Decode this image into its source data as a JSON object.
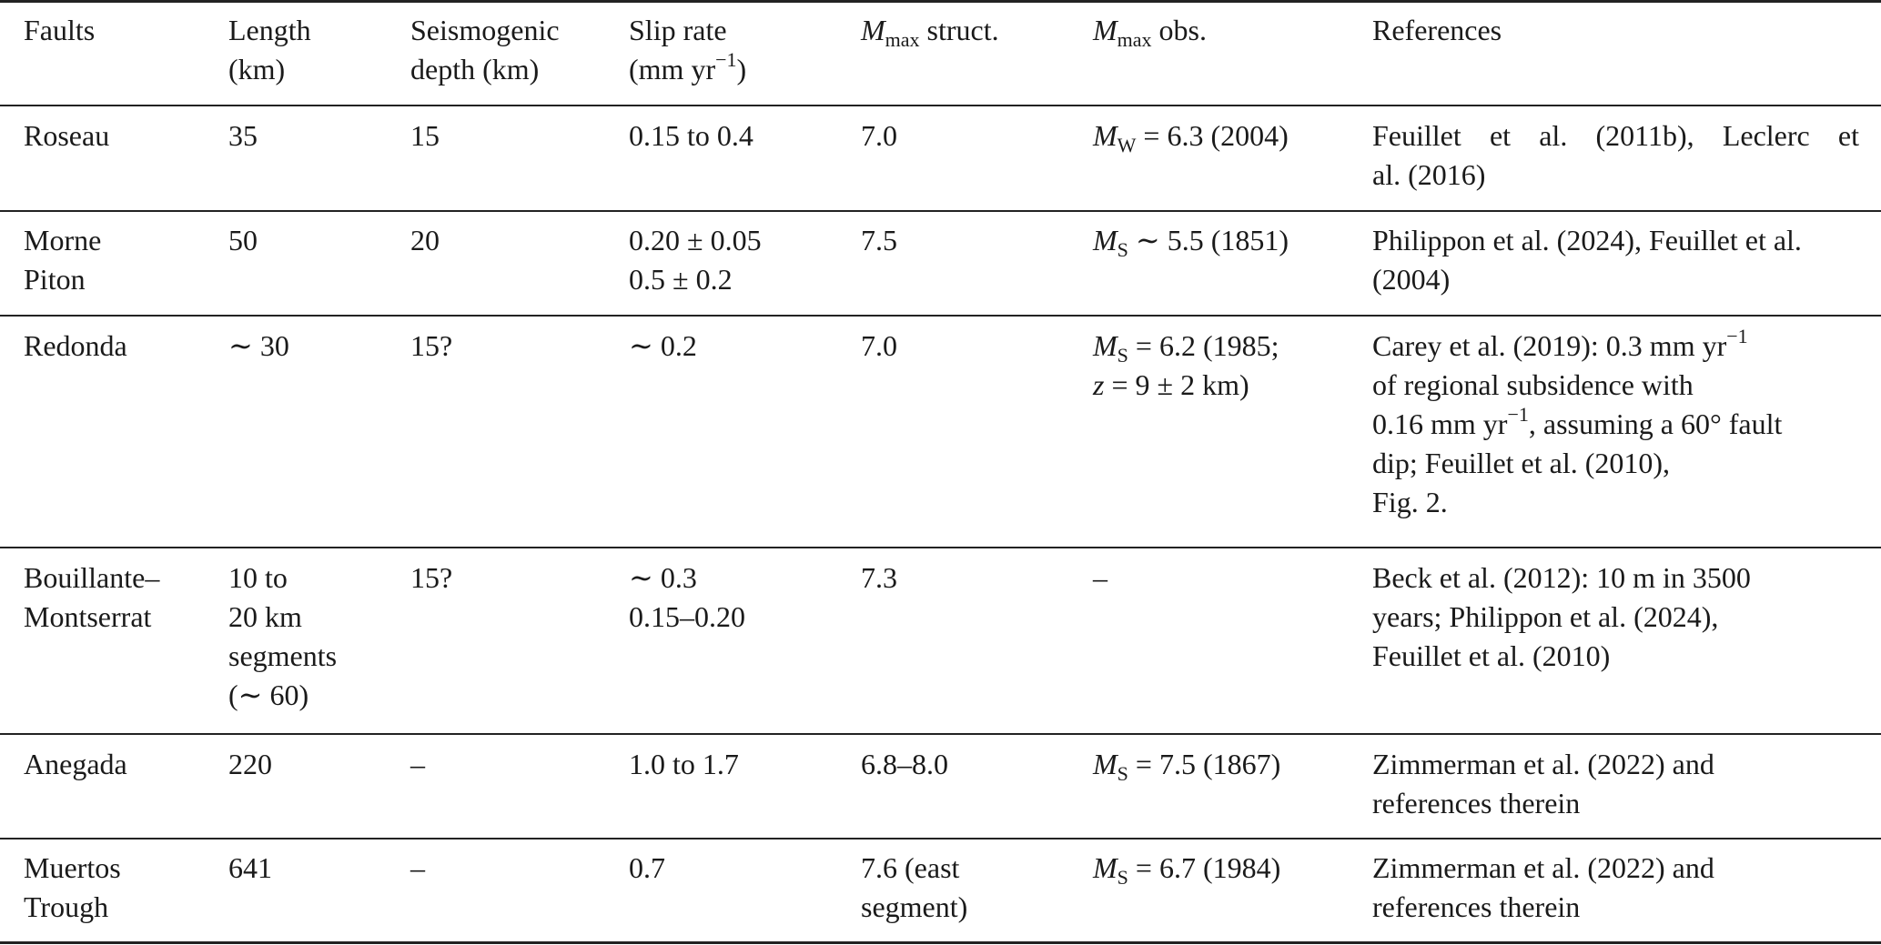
{
  "headers": {
    "faults": "Faults",
    "length": [
      "Length",
      "(km)"
    ],
    "depth": [
      "Seismogenic",
      "depth (km)"
    ],
    "slip_rate": [
      "Slip rate",
      "(mm yr"
    ],
    "slip_rate_exp": "−1",
    "slip_rate_close": ")",
    "mmax_struct_m": "M",
    "mmax_struct_sub": "max",
    "mmax_struct_rest": " struct.",
    "mmax_obs_m": "M",
    "mmax_obs_sub": "max",
    "mmax_obs_rest": " obs.",
    "references": "References"
  },
  "rows": [
    {
      "fault": [
        "Roseau"
      ],
      "length": [
        "35"
      ],
      "depth": [
        "15"
      ],
      "slip": [
        "0.15 to 0.4"
      ],
      "mstruct": [
        "7.0"
      ],
      "mobs": {
        "m": "M",
        "sub": "W",
        "rest": " = 6.3 (2004)"
      },
      "refs": [
        "Feuillet et al. (2011b), Leclerc et",
        "al. (2016)"
      ]
    },
    {
      "fault": [
        "Morne",
        "Piton"
      ],
      "length": [
        "50"
      ],
      "depth": [
        "20"
      ],
      "slip": [
        "0.20 ± 0.05",
        "0.5 ± 0.2"
      ],
      "mstruct": [
        "7.5"
      ],
      "mobs": {
        "m": "M",
        "sub": "S",
        "rest": " ∼ 5.5 (1851)"
      },
      "refs": [
        "Philippon et al. (2024), Feuillet et al.",
        "(2004)"
      ]
    },
    {
      "fault": [
        "Redonda"
      ],
      "length": [
        "∼ 30"
      ],
      "depth": [
        "15?"
      ],
      "slip": [
        "∼ 0.2"
      ],
      "mstruct": [
        "7.0"
      ],
      "mobs": {
        "m": "M",
        "sub": "S",
        "rest": " = 6.2 (1985;",
        "line2_z": "z",
        "line2_rest": " = 9 ± 2 km)"
      },
      "refs": {
        "l1": "Carey et al. (2019): 0.3 mm yr",
        "l1_exp": "−1",
        "l2": "of regional subsidence with",
        "l3": "0.16 mm yr",
        "l3_exp": "−1",
        "l3_rest": ", assuming a 60° fault",
        "l4": "dip; Feuillet et al. (2010),",
        "l5": "Fig. 2."
      }
    },
    {
      "fault": [
        "Bouillante–",
        "Montserrat"
      ],
      "length": [
        "10 to",
        "20 km",
        "segments",
        "(∼ 60)"
      ],
      "depth": [
        "15?"
      ],
      "slip": [
        "∼ 0.3",
        "0.15–0.20"
      ],
      "mstruct": [
        "7.3"
      ],
      "mobs_dash": "–",
      "refs": [
        "Beck et al. (2012): 10 m in 3500",
        "years; Philippon et al. (2024),",
        "Feuillet et al. (2010)"
      ]
    },
    {
      "fault": [
        "Anegada"
      ],
      "length": [
        "220"
      ],
      "depth": [
        "–"
      ],
      "slip": [
        "1.0 to 1.7"
      ],
      "mstruct": [
        "6.8–8.0"
      ],
      "mobs": {
        "m": "M",
        "sub": "S",
        "rest": " = 7.5 (1867)"
      },
      "refs": [
        "Zimmerman et al. (2022) and",
        "references therein"
      ]
    },
    {
      "fault": [
        "Muertos",
        "Trough"
      ],
      "length": [
        "641"
      ],
      "depth": [
        "–"
      ],
      "slip": [
        "0.7"
      ],
      "mstruct": [
        "7.6 (east",
        "segment)"
      ],
      "mobs": {
        "m": "M",
        "sub": "S",
        "rest": " = 6.7 (1984)"
      },
      "refs": [
        "Zimmerman et al. (2022) and",
        "references therein"
      ]
    }
  ]
}
